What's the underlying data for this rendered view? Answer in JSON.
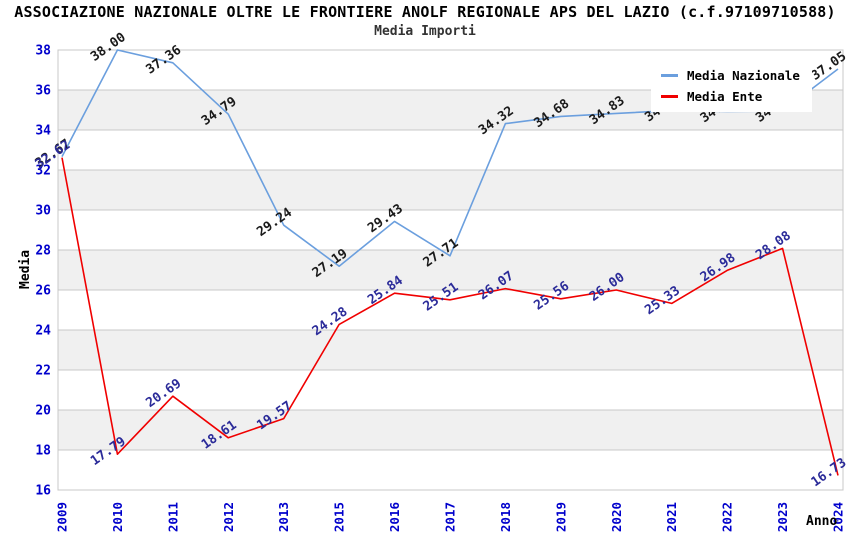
{
  "chart_data": {
    "type": "line",
    "title": "ASSOCIAZIONE NAZIONALE OLTRE LE FRONTIERE ANOLF REGIONALE APS DEL LAZIO (c.f.97109710588)",
    "subtitle": "Media Importi",
    "xlabel": "Anno",
    "ylabel": "Media",
    "ylim": [
      16,
      38
    ],
    "y_step": 2,
    "grid": "horizontal gridlines with alternating gray bands",
    "legend_position": "top-right",
    "categories": [
      "2009",
      "2010",
      "2011",
      "2012",
      "2013",
      "2015",
      "2016",
      "2017",
      "2018",
      "2019",
      "2020",
      "2021",
      "2022",
      "2023",
      "2024"
    ],
    "series": [
      {
        "name": "Media Nazionale",
        "color": "#6B9FDE",
        "label_color": "#1A1A1A",
        "values": [
          32.67,
          38.0,
          37.36,
          34.79,
          29.24,
          27.19,
          29.43,
          27.71,
          34.32,
          34.68,
          34.83,
          34.97,
          34.93,
          34.95,
          37.05
        ],
        "labels": [
          "32.67",
          "38.00",
          "37.36",
          "34.79",
          "29.24",
          "27.19",
          "29.43",
          "27.71",
          "34.32",
          "34.68",
          "34.83",
          "34.97",
          "34.93",
          "34.95",
          "37.05"
        ],
        "labels_partially_hidden_by_legend": [
          11,
          12,
          13
        ]
      },
      {
        "name": "Media Ente",
        "color": "#F00000",
        "label_color": "#2B2B99",
        "values": [
          32.62,
          17.79,
          20.69,
          18.61,
          19.57,
          24.28,
          25.84,
          25.51,
          26.07,
          25.56,
          26.0,
          25.33,
          26.98,
          28.08,
          16.73
        ],
        "labels": [
          "32.62",
          "17.79",
          "20.69",
          "18.61",
          "19.57",
          "24.28",
          "25.84",
          "25.51",
          "26.07",
          "25.56",
          "26.00",
          "25.33",
          "26.98",
          "28.08",
          "16.73"
        ]
      }
    ]
  },
  "colors": {
    "background": "#FFFFFF",
    "band": "#F0F0F0",
    "grid": "#C8C8C8",
    "tick_label": "#0000CC",
    "axis_title": "#000000"
  }
}
